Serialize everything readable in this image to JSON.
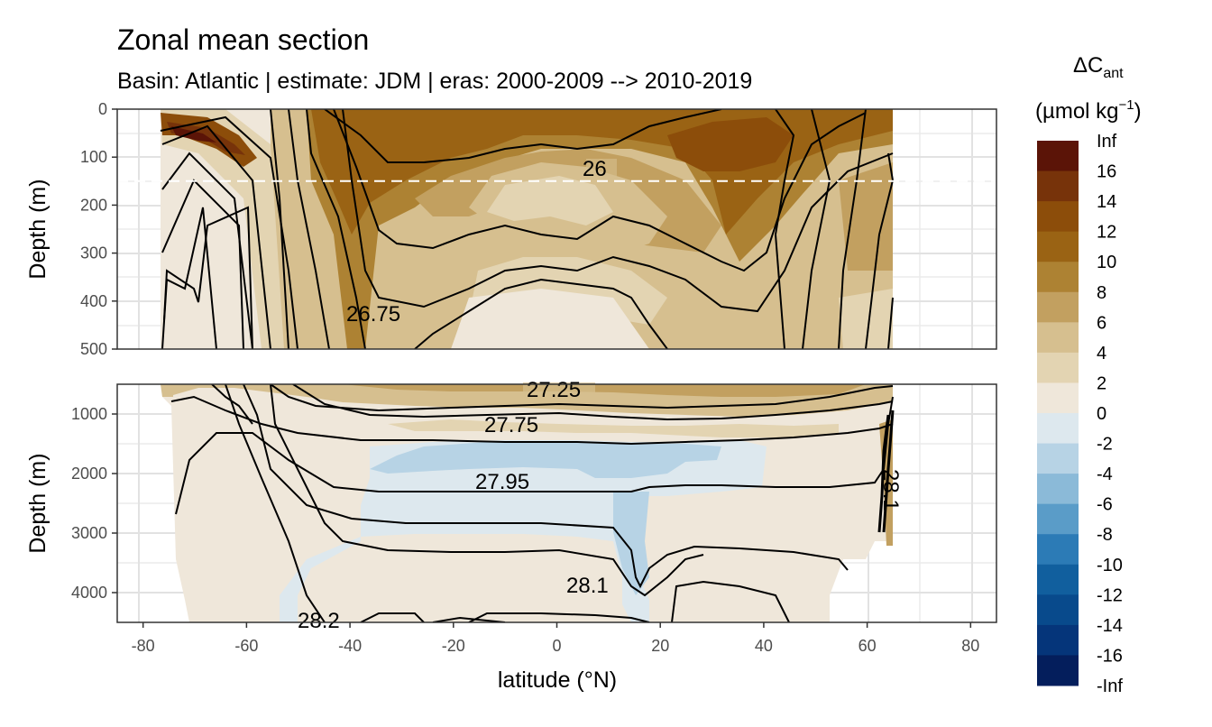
{
  "chart_data": {
    "type": "heatmap",
    "title": "Zonal mean section",
    "subtitle": "Basin: Atlantic | estimate: JDM  | eras: 2000-2009 --> 2010-2019",
    "xlabel": "latitude (°N)",
    "xlim": [
      -85,
      85
    ],
    "x_ticks": [
      "-80",
      "-60",
      "-40",
      "-20",
      "0",
      "20",
      "40",
      "60",
      "80"
    ],
    "x_tick_values": [
      -80,
      -60,
      -40,
      -20,
      0,
      20,
      40,
      60,
      80
    ],
    "panels": [
      {
        "name": "upper",
        "ylabel": "Depth (m)",
        "ylim": [
          0,
          500
        ],
        "y_ticks": [
          "0",
          "100",
          "200",
          "300",
          "400",
          "500"
        ],
        "y_tick_values": [
          0,
          100,
          200,
          300,
          400,
          500
        ],
        "reference_depth": 150,
        "isopycnal_labels": [
          {
            "text": "26",
            "lat": 7,
            "depth": 125
          },
          {
            "text": "26.75",
            "lat": -37,
            "depth": 422
          }
        ]
      },
      {
        "name": "lower",
        "ylabel": "Depth (m)",
        "ylim": [
          500,
          4500
        ],
        "y_ticks": [
          "1000",
          "2000",
          "3000",
          "4000"
        ],
        "y_tick_values": [
          1000,
          2000,
          3000,
          4000
        ],
        "isopycnal_labels": [
          {
            "text": "27.25",
            "lat": 0,
            "depth": 600
          },
          {
            "text": "27.75",
            "lat": -10,
            "depth": 1200
          },
          {
            "text": "27.95",
            "lat": -10,
            "depth": 2200
          },
          {
            "text": "28.1",
            "lat": 6,
            "depth": 3900
          },
          {
            "text": "28.2",
            "lat": -46,
            "depth": 4500
          },
          {
            "text": "28.1",
            "lat": 64,
            "depth": 2300
          }
        ]
      }
    ],
    "legend": {
      "title_main": "ΔC",
      "title_sub": "ant",
      "unit": "(µmol kg",
      "unit_exp": "−1",
      "unit_close": ")",
      "labels": [
        "Inf",
        "16",
        "14",
        "12",
        "10",
        "8",
        "6",
        "4",
        "2",
        "0",
        "-2",
        "-4",
        "-6",
        "-8",
        "-10",
        "-12",
        "-14",
        "-16",
        "-Inf"
      ],
      "colors": [
        "#5b1407",
        "#77330a",
        "#8c4d0a",
        "#9a6314",
        "#ad8233",
        "#c2a060",
        "#d6bf8f",
        "#e3d4b2",
        "#efe7da",
        "#dde8ee",
        "#b7d3e5",
        "#8bbad8",
        "#5a9cc8",
        "#2c7bb6",
        "#115f9e",
        "#084a8c",
        "#05357a",
        "#041e5c"
      ]
    }
  }
}
